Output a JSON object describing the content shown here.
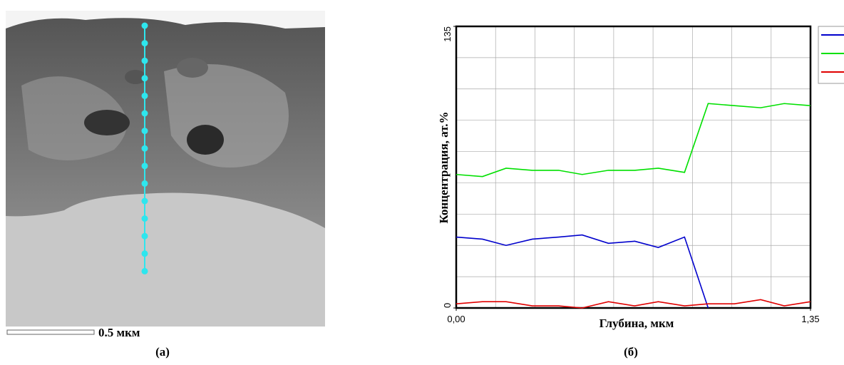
{
  "chart_data": {
    "type": "line",
    "x_label": "Глубина, мкм",
    "y_label": "Концентрация, ат.%",
    "x": [
      0,
      0.1,
      0.19,
      0.29,
      0.39,
      0.48,
      0.58,
      0.68,
      0.77,
      0.87,
      0.96,
      1.06,
      1.16,
      1.25,
      1.35
    ],
    "series": [
      {
        "color": "#0000cc",
        "values": [
          34,
          33,
          30,
          33,
          34,
          35,
          31,
          32,
          29,
          34,
          0,
          null,
          null,
          null,
          null
        ]
      },
      {
        "color": "#00e000",
        "values": [
          64,
          63,
          67,
          66,
          66,
          64,
          66,
          66,
          67,
          65,
          98,
          97,
          96,
          98,
          97
        ]
      },
      {
        "color": "#e00000",
        "values": [
          2,
          3,
          3,
          1,
          1,
          0,
          3,
          1,
          3,
          1,
          2,
          2,
          4,
          1,
          3
        ]
      }
    ],
    "xlim": [
      0,
      1.35
    ],
    "ylim": [
      0,
      135
    ],
    "xticks": [
      {
        "value": 0,
        "label": "0,00"
      },
      {
        "value": 1.35,
        "label": "1,35"
      }
    ],
    "yticks": [
      0,
      135
    ],
    "grid": {
      "x": 9,
      "y": 9
    }
  },
  "figure": {
    "scale_bar": "0.5 мкм",
    "caption_a": "(а)",
    "caption_b": "(б)"
  }
}
